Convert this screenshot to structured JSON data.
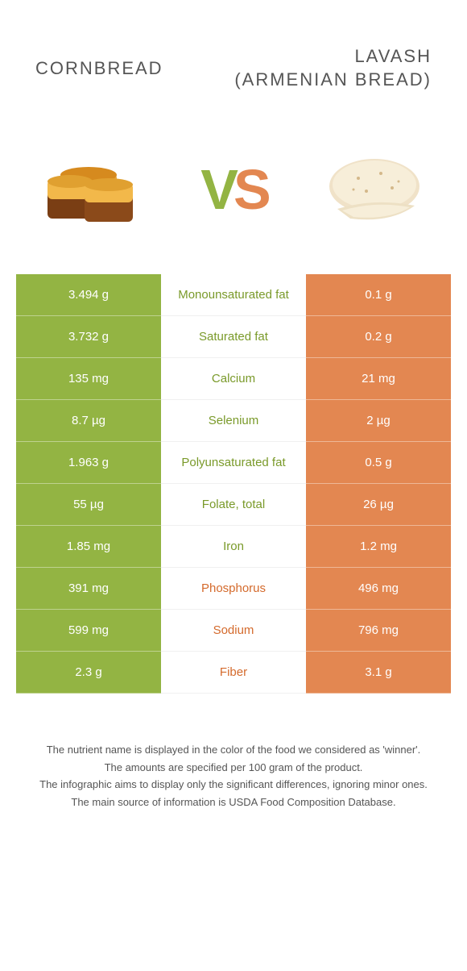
{
  "colors": {
    "green": "#93b443",
    "orange": "#e38751",
    "label_green": "#7a9a2a",
    "label_orange": "#d46a2c",
    "text": "#555555",
    "white": "#ffffff"
  },
  "header": {
    "left_title": "Cornbread",
    "right_title_line1": "Lavash",
    "right_title_line2": "(Armenian bread)",
    "vs_v": "V",
    "vs_s": "S"
  },
  "rows": [
    {
      "left": "3.494 g",
      "label": "Monounsaturated fat",
      "right": "0.1 g",
      "winner": "left"
    },
    {
      "left": "3.732 g",
      "label": "Saturated fat",
      "right": "0.2 g",
      "winner": "left"
    },
    {
      "left": "135 mg",
      "label": "Calcium",
      "right": "21 mg",
      "winner": "left"
    },
    {
      "left": "8.7 µg",
      "label": "Selenium",
      "right": "2 µg",
      "winner": "left"
    },
    {
      "left": "1.963 g",
      "label": "Polyunsaturated fat",
      "right": "0.5 g",
      "winner": "left"
    },
    {
      "left": "55 µg",
      "label": "Folate, total",
      "right": "26 µg",
      "winner": "left"
    },
    {
      "left": "1.85 mg",
      "label": "Iron",
      "right": "1.2 mg",
      "winner": "left"
    },
    {
      "left": "391 mg",
      "label": "Phosphorus",
      "right": "496 mg",
      "winner": "right"
    },
    {
      "left": "599 mg",
      "label": "Sodium",
      "right": "796 mg",
      "winner": "right"
    },
    {
      "left": "2.3 g",
      "label": "Fiber",
      "right": "3.1 g",
      "winner": "right"
    }
  ],
  "footer": [
    "The nutrient name is displayed in the color of the food we considered as 'winner'.",
    "The amounts are specified per 100 gram of the product.",
    "The infographic aims to display only the significant differences, ignoring minor ones.",
    "The main source of information is USDA Food Composition Database."
  ]
}
